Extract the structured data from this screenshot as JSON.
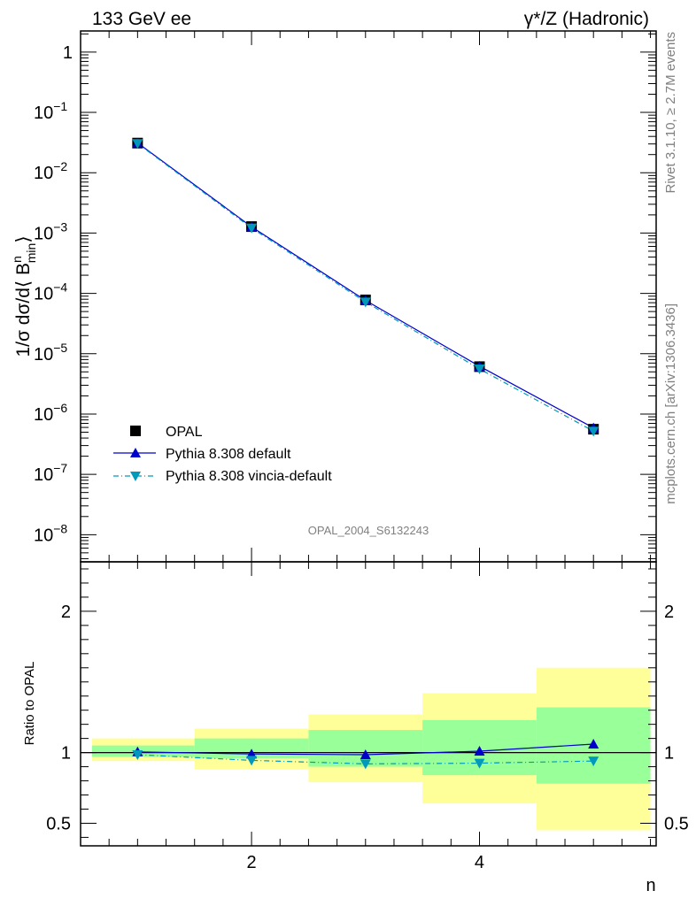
{
  "header": {
    "left": "133 GeV ee",
    "right": "γ*/Z (Hadronic)"
  },
  "side_labels": {
    "rivet": "Rivet 3.1.10, ≥ 2.7M events",
    "mcplots": "mcplots.cern.ch [arXiv:1306.3436]"
  },
  "watermark": "OPAL_2004_S6132243",
  "colors": {
    "pythia": "#0000cc",
    "vincia": "#0099bb",
    "band_inner": "#99ff99",
    "band_outer": "#ffff99",
    "data": "#000000"
  },
  "chart_data": [
    {
      "type": "scatter",
      "name": "main",
      "yscale": "log",
      "ylabel": "1/σ dσ/d⟨ B",
      "ylabel_sup": "n",
      "ylabel_sub": "min",
      "ylabel_end": "⟩",
      "xlim": [
        0.5,
        5.55
      ],
      "ylim_exp": [
        -8.45,
        0.35
      ],
      "yticks": [
        {
          "exp": 0,
          "label": "1"
        },
        {
          "exp": -1,
          "label": "10",
          "sup": "−1"
        },
        {
          "exp": -2,
          "label": "10",
          "sup": "−2"
        },
        {
          "exp": -3,
          "label": "10",
          "sup": "−3"
        },
        {
          "exp": -4,
          "label": "10",
          "sup": "−4"
        },
        {
          "exp": -5,
          "label": "10",
          "sup": "−5"
        },
        {
          "exp": -6,
          "label": "10",
          "sup": "−6"
        },
        {
          "exp": -7,
          "label": "10",
          "sup": "−7"
        },
        {
          "exp": -8,
          "label": "10",
          "sup": "−8"
        }
      ],
      "series": [
        {
          "name": "OPAL",
          "x": [
            1,
            2,
            3,
            4,
            5
          ],
          "y": [
            0.031,
            0.00128,
            7.8e-05,
            6.1e-06,
            5.6e-07
          ]
        },
        {
          "name": "Pythia 8.308 default",
          "x": [
            1,
            2,
            3,
            4,
            5
          ],
          "y": [
            0.0312,
            0.00127,
            7.65e-05,
            6.2e-06,
            5.9e-07
          ]
        },
        {
          "name": "Pythia 8.308 vincia-default",
          "x": [
            1,
            2,
            3,
            4,
            5
          ],
          "y": [
            0.0305,
            0.00121,
            7.2e-05,
            5.6e-06,
            5.2e-07
          ]
        }
      ],
      "legend": {
        "placement": "lower-left",
        "entries": [
          "OPAL",
          "Pythia 8.308 default",
          "Pythia 8.308 vincia-default"
        ]
      }
    },
    {
      "type": "line",
      "name": "ratio",
      "ylabel": "Ratio to OPAL",
      "xlabel": "n",
      "xlim": [
        0.5,
        5.55
      ],
      "ylim": [
        0.34,
        2.35
      ],
      "yticks": [
        {
          "v": 0.5,
          "label": "0.5"
        },
        {
          "v": 1,
          "label": "1"
        },
        {
          "v": 2,
          "label": "2"
        }
      ],
      "xticks": [
        {
          "v": 2,
          "label": "2"
        },
        {
          "v": 4,
          "label": "4"
        }
      ],
      "bands": [
        {
          "x0": 0.5,
          "x1": 1.5,
          "inner": [
            0.97,
            1.05
          ],
          "outer": [
            0.94,
            1.1
          ]
        },
        {
          "x0": 1.5,
          "x1": 2.5,
          "inner": [
            0.96,
            1.1
          ],
          "outer": [
            0.88,
            1.17
          ]
        },
        {
          "x0": 2.5,
          "x1": 3.5,
          "inner": [
            0.9,
            1.16
          ],
          "outer": [
            0.79,
            1.27
          ]
        },
        {
          "x0": 3.5,
          "x1": 4.5,
          "inner": [
            0.84,
            1.23
          ],
          "outer": [
            0.64,
            1.42
          ]
        },
        {
          "x0": 4.5,
          "x1": 5.5,
          "inner": [
            0.78,
            1.32
          ],
          "outer": [
            0.45,
            1.6
          ]
        }
      ],
      "series": [
        {
          "name": "Pythia 8.308 default",
          "x": [
            1,
            2,
            3,
            4,
            5
          ],
          "y": [
            1.005,
            0.99,
            0.985,
            1.01,
            1.06
          ]
        },
        {
          "name": "Pythia 8.308 vincia-default",
          "x": [
            1,
            2,
            3,
            4,
            5
          ],
          "y": [
            0.985,
            0.945,
            0.92,
            0.925,
            0.94
          ]
        }
      ]
    }
  ]
}
